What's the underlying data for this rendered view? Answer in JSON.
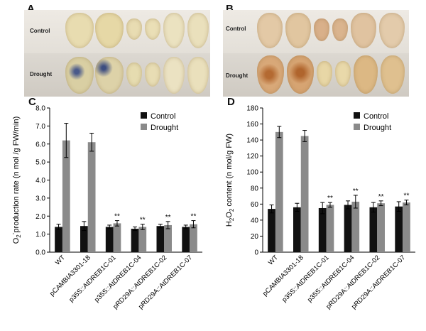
{
  "panels": {
    "A": {
      "letter": "A",
      "row_labels": [
        "Control",
        "Drought"
      ]
    },
    "B": {
      "letter": "B",
      "row_labels": [
        "Control",
        "Drought"
      ]
    },
    "C": {
      "letter": "C"
    },
    "D": {
      "letter": "D"
    }
  },
  "colors": {
    "control": "#111111",
    "drought": "#8a8a8a"
  },
  "chart_data": [
    {
      "type": "bar",
      "panel": "C",
      "ylabel": "O2- production rate (n mol /g FW/min)",
      "ylim": [
        0,
        8
      ],
      "yticks": [
        "0.0",
        "1.0",
        "2.0",
        "3.0",
        "4.0",
        "5.0",
        "6.0",
        "7.0",
        "8.0"
      ],
      "categories": [
        "WT",
        "pCAMBIA3301-18",
        "p35S::AtDREB1C-01",
        "p35S::AtDREB1C-04",
        "pRD29A::AtDREB1C-02",
        "pRD29A::AtDREB1C-07"
      ],
      "legend": [
        "Control",
        "Drought"
      ],
      "legend_position": "top-right",
      "series": [
        {
          "name": "Control",
          "values": [
            1.4,
            1.45,
            1.4,
            1.3,
            1.45,
            1.4
          ],
          "errors": [
            0.15,
            0.25,
            0.1,
            0.1,
            0.1,
            0.1
          ]
        },
        {
          "name": "Drought",
          "values": [
            6.2,
            6.1,
            1.6,
            1.4,
            1.5,
            1.55
          ],
          "errors": [
            0.95,
            0.5,
            0.15,
            0.15,
            0.2,
            0.2
          ]
        }
      ],
      "annotations": [
        "**",
        "**",
        "**",
        "**"
      ],
      "annotated_categories": [
        2,
        3,
        4,
        5
      ]
    },
    {
      "type": "bar",
      "panel": "D",
      "ylabel": "H2O2 content (n mol/g FW)",
      "ylim": [
        0,
        180
      ],
      "yticks": [
        "0",
        "20",
        "40",
        "60",
        "80",
        "100",
        "120",
        "140",
        "160",
        "180"
      ],
      "categories": [
        "WT",
        "pCAMBIA3301-18",
        "p35S::AtDREB1C-01",
        "p35S::AtDREB1C-04",
        "pRD29A::AtDREB1C-02",
        "pRD29A::AtDREB1C-07"
      ],
      "legend": [
        "Control",
        "Drought"
      ],
      "legend_position": "top-right",
      "series": [
        {
          "name": "Control",
          "values": [
            54,
            56,
            55,
            59,
            56,
            57
          ],
          "errors": [
            5,
            5,
            7,
            5,
            6,
            6
          ]
        },
        {
          "name": "Drought",
          "values": [
            150,
            145,
            59,
            63,
            61,
            62
          ],
          "errors": [
            7,
            7,
            3,
            8,
            3,
            3
          ]
        }
      ],
      "annotations": [
        "**",
        "**",
        "**",
        "**"
      ],
      "annotated_categories": [
        2,
        3,
        4,
        5
      ]
    }
  ]
}
